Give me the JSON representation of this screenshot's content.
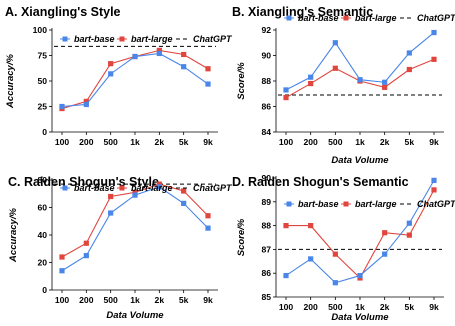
{
  "chart_data": [
    {
      "type": "line",
      "panel": "A",
      "title": "A. Xiangling's Style",
      "xlabel": "",
      "ylabel": "Accuracy/%",
      "categories": [
        "100",
        "200",
        "500",
        "1k",
        "2k",
        "5k",
        "9k"
      ],
      "ylim": [
        0,
        100
      ],
      "yticks": [
        0,
        25,
        50,
        75,
        100
      ],
      "series": [
        {
          "name": "bart-base",
          "color": "#4A86E8",
          "marker": "square",
          "values": [
            25,
            27,
            57,
            74,
            77,
            64,
            47
          ]
        },
        {
          "name": "bart-large",
          "color": "#E0463E",
          "marker": "square",
          "values": [
            23,
            30,
            67,
            74,
            80,
            76,
            62
          ]
        }
      ],
      "reference": {
        "name": "ChatGPT",
        "value": 84,
        "style": "dashed",
        "color": "#000000"
      },
      "legend": "top"
    },
    {
      "type": "line",
      "panel": "B",
      "title": "B. Xiangling's Semantic",
      "xlabel": "Data Volume",
      "ylabel": "Score/%",
      "categories": [
        "100",
        "200",
        "500",
        "1k",
        "2k",
        "5k",
        "9k"
      ],
      "ylim": [
        84,
        92
      ],
      "yticks": [
        84,
        86,
        88,
        90,
        92
      ],
      "series": [
        {
          "name": "bart-base",
          "color": "#4A86E8",
          "marker": "square",
          "values": [
            87.3,
            88.3,
            91.0,
            88.1,
            87.9,
            90.2,
            91.8
          ]
        },
        {
          "name": "bart-large",
          "color": "#E0463E",
          "marker": "square",
          "values": [
            86.7,
            87.8,
            89.0,
            88.0,
            87.5,
            88.9,
            89.7
          ]
        }
      ],
      "reference": {
        "name": "ChatGPT",
        "value": 86.9,
        "style": "dashed",
        "color": "#000000"
      },
      "legend": "top"
    },
    {
      "type": "line",
      "panel": "C",
      "title": "C. Raiden Shogun's Style",
      "xlabel": "Data Volume",
      "ylabel": "Accuracy/%",
      "categories": [
        "100",
        "200",
        "500",
        "1k",
        "2k",
        "5k",
        "9k"
      ],
      "ylim": [
        0,
        80
      ],
      "yticks": [
        0,
        20,
        40,
        60,
        80
      ],
      "series": [
        {
          "name": "bart-base",
          "color": "#4A86E8",
          "marker": "square",
          "values": [
            14,
            25,
            56,
            69,
            75,
            63,
            45
          ]
        },
        {
          "name": "bart-large",
          "color": "#E0463E",
          "marker": "square",
          "values": [
            24,
            34,
            68,
            71,
            77,
            72,
            54
          ]
        }
      ],
      "reference": {
        "name": "ChatGPT",
        "value": 77,
        "style": "dashed",
        "color": "#000000"
      },
      "legend": "top"
    },
    {
      "type": "line",
      "panel": "D",
      "title": "D. Raiden Shogun's Semantic",
      "xlabel": "Data Volume",
      "ylabel": "Score/%",
      "categories": [
        "100",
        "200",
        "500",
        "1k",
        "2k",
        "5k",
        "9k"
      ],
      "ylim": [
        85,
        90
      ],
      "yticks": [
        85,
        86,
        87,
        88,
        89,
        90
      ],
      "series": [
        {
          "name": "bart-base",
          "color": "#4A86E8",
          "marker": "square",
          "values": [
            85.9,
            86.6,
            85.6,
            85.9,
            86.8,
            88.1,
            89.9
          ]
        },
        {
          "name": "bart-large",
          "color": "#E0463E",
          "marker": "square",
          "values": [
            88.0,
            88.0,
            86.8,
            85.8,
            87.7,
            87.6,
            89.5
          ]
        }
      ],
      "reference": {
        "name": "ChatGPT",
        "value": 87.0,
        "style": "dashed",
        "color": "#000000"
      },
      "legend": "top"
    }
  ]
}
